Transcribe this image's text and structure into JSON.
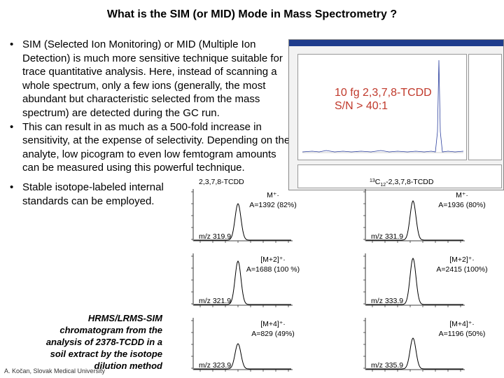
{
  "title": "What is the SIM (or MID) Mode in Mass Spectrometry ?",
  "bullets": [
    "SIM (Selected Ion Monitoring) or MID (Multiple Ion Detection) is much more sensitive technique suitable for trace quantitative analysis. Here, instead of scanning a whole spectrum, only a few ions (generally, the most abundant but characteristic selected from the mass spectrum) are detected during the GC run.",
    "This can result in as much as a 500-fold increase in sensitivity, at the expense of selectivity. Depending on the analyte, low picogram to even low femtogram amounts can be measured using this powerful technique.",
    "Stable isotope-labeled internal standards can be employed."
  ],
  "caption": "HRMS/LRMS-SIM chromatogram from the analysis of 2378-TCDD in a soil extract by the isotope dilution method",
  "credit": "A. Kočan, Slovak Medical University",
  "screenshot": {
    "overlay_line1": "10 fg 2,3,7,8-TCDD",
    "overlay_line2": "S/N > 40:1"
  },
  "chromatograms": {
    "left_header": "2,3,7,8-TCDD",
    "right_header_sup": "13",
    "right_header_sub": "12",
    "right_header_rest": "-2,3,7,8-TCDD",
    "left": [
      {
        "ion": "M⁺·",
        "area": "A=1392 (82%)",
        "mz": "m/z 319.9"
      },
      {
        "ion": "[M+2]⁺·",
        "area": "A=1688 (100 %)",
        "mz": "m/z 321.9"
      },
      {
        "ion": "[M+4]⁺·",
        "area": "A=829 (49%)",
        "mz": "m/z 323.9"
      }
    ],
    "right": [
      {
        "ion": "M⁺·",
        "area": "A=1936 (80%)",
        "mz": "m/z 331.9"
      },
      {
        "ion": "[M+2]⁺·",
        "area": "A=2415 (100%)",
        "mz": "m/z 333.9"
      },
      {
        "ion": "[M+4]⁺·",
        "area": "A=1196 (50%)",
        "mz": "m/z 335.9"
      }
    ]
  }
}
